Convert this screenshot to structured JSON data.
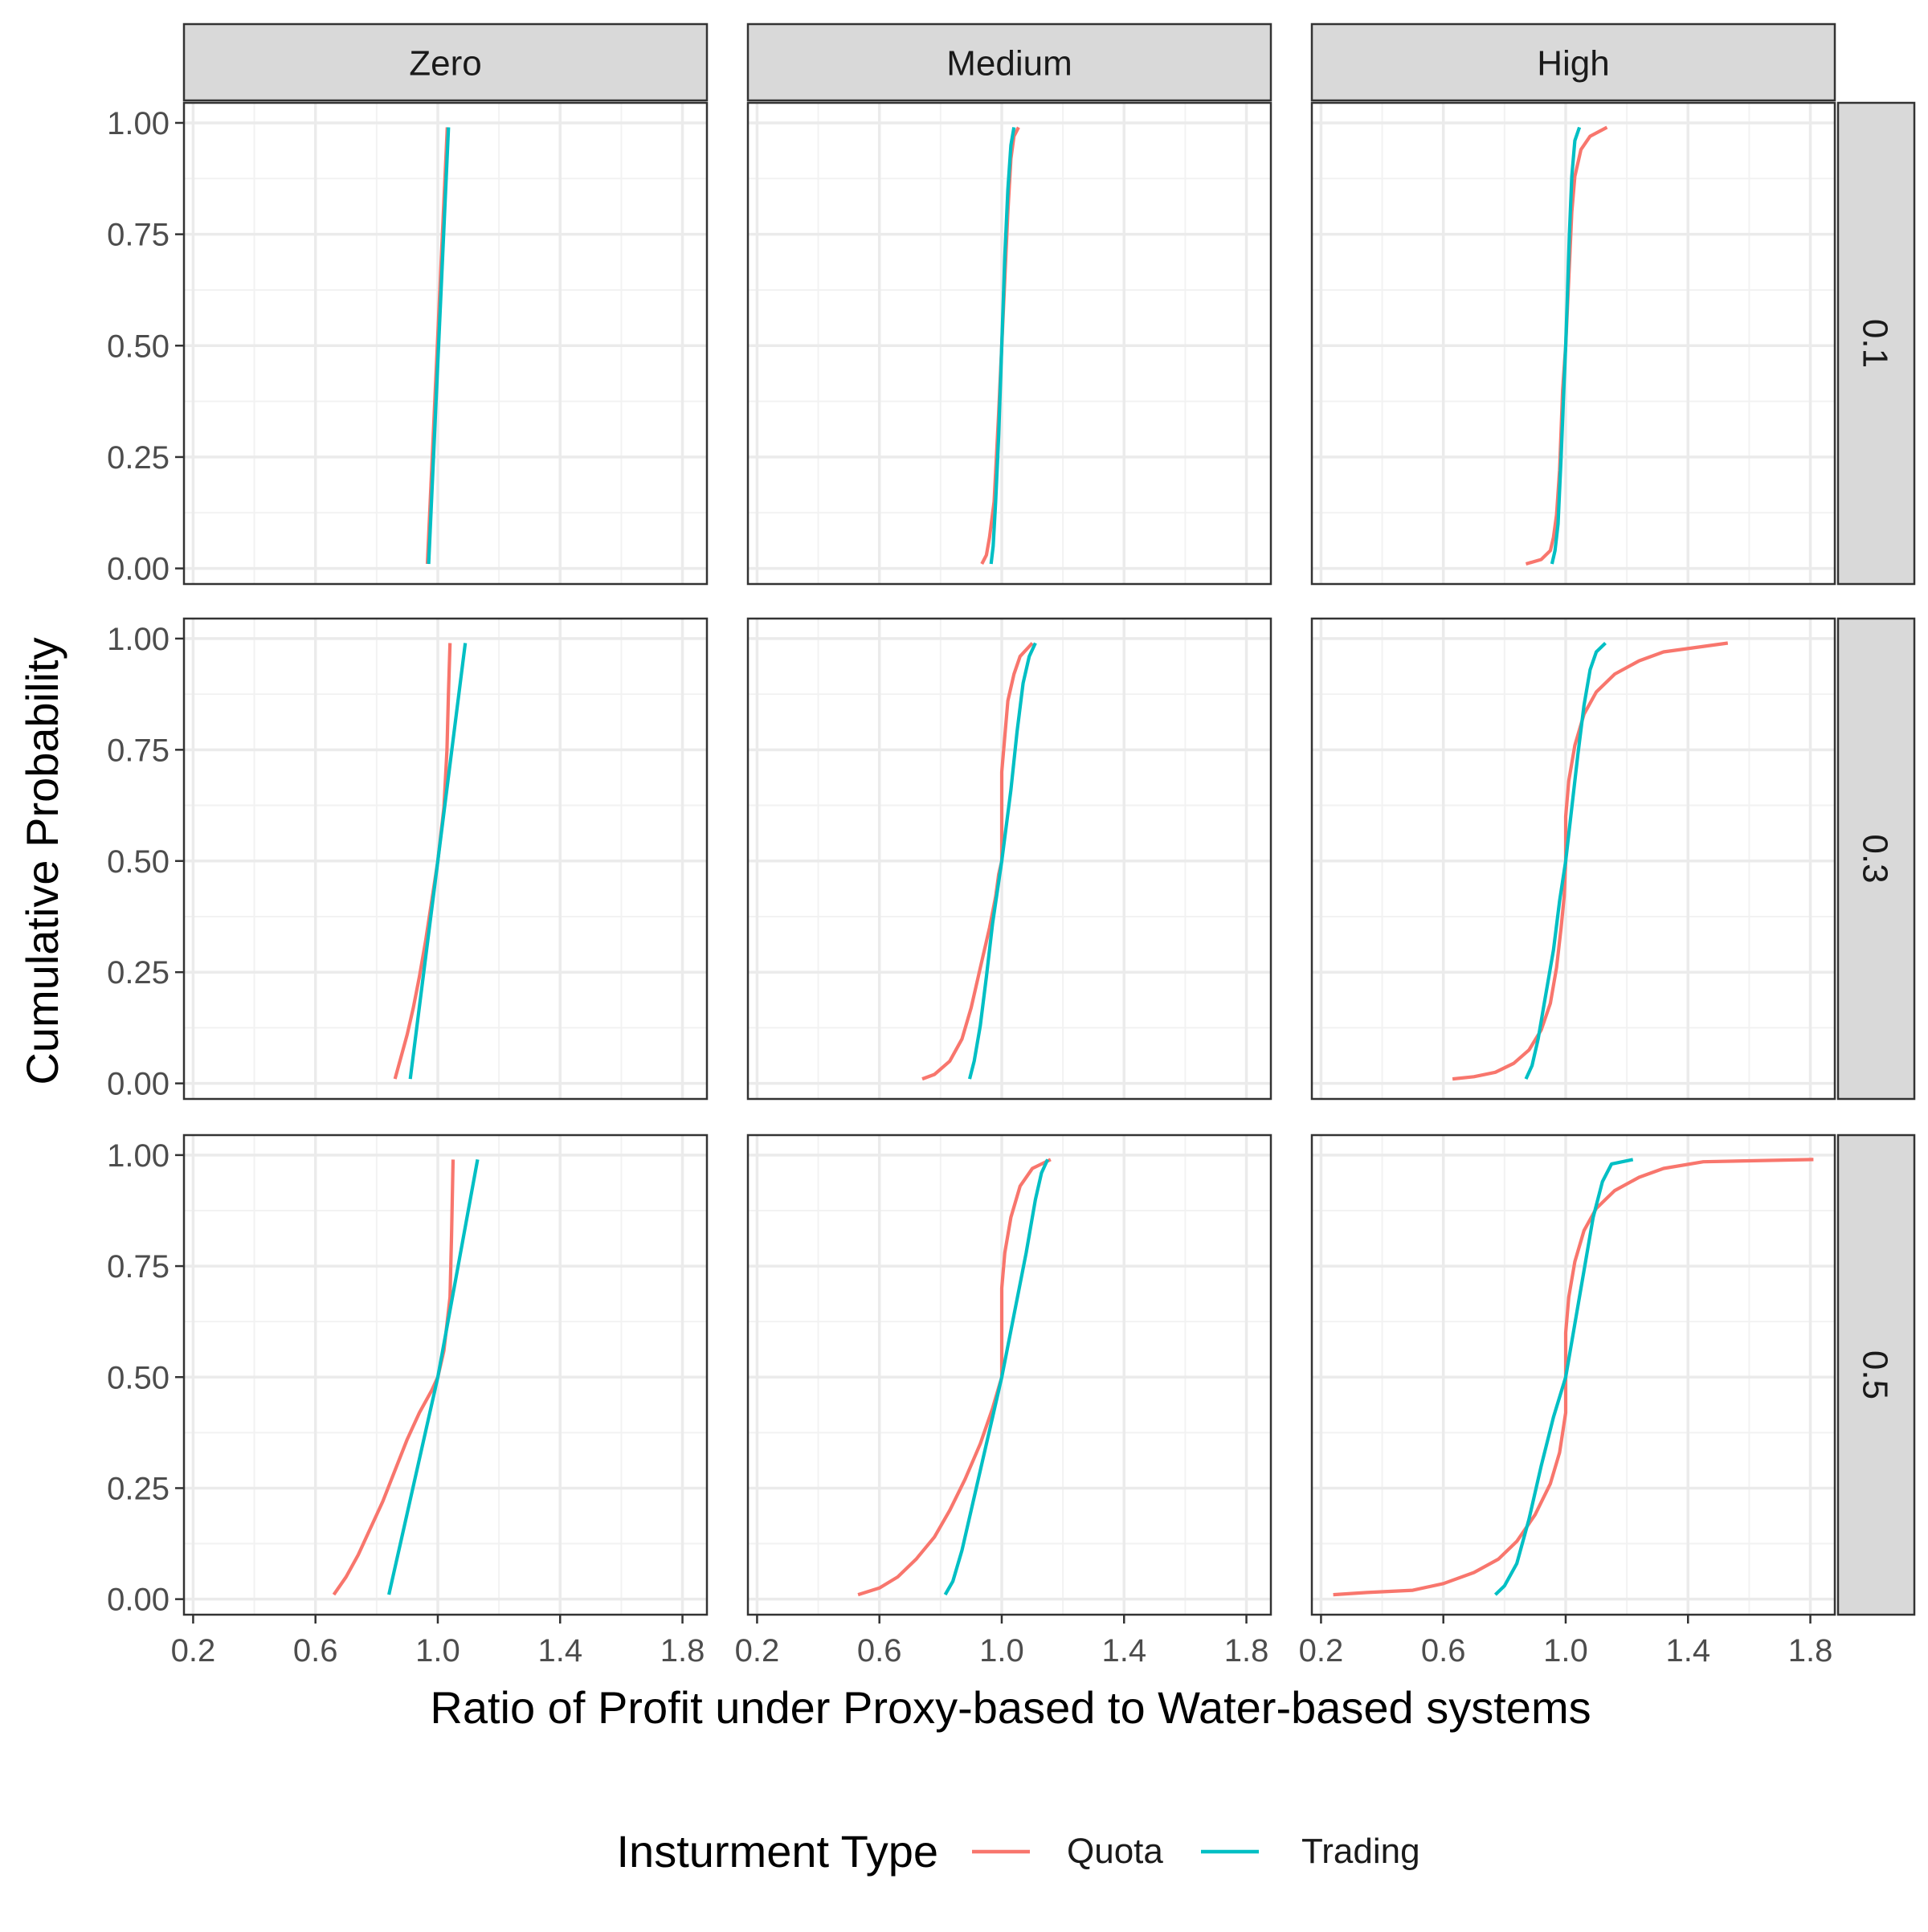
{
  "chart_data": {
    "type": "line",
    "subtype": "faceted-cdf",
    "xlabel": "Ratio of Profit under Proxy-based to Water-based systems",
    "ylabel": "Cumulative Probability",
    "xlim": [
      0.17,
      1.88
    ],
    "ylim": [
      -0.035,
      1.045
    ],
    "xticks": [
      0.2,
      0.6,
      1.0,
      1.4,
      1.8
    ],
    "xtick_labels": [
      "0.2",
      "0.6",
      "1.0",
      "1.4",
      "1.8"
    ],
    "yticks": [
      0,
      0.25,
      0.5,
      0.75,
      1.0
    ],
    "ytick_labels": [
      "0.00",
      "0.25",
      "0.50",
      "0.75",
      "1.00"
    ],
    "grid": true,
    "col_facets": [
      "Zero",
      "Medium",
      "High"
    ],
    "row_facets": [
      "0.1",
      "0.3",
      "0.5"
    ],
    "legend": {
      "title": "Insturment Type",
      "position": "bottom",
      "entries": [
        {
          "name": "Quota",
          "color": "#F8766D"
        },
        {
          "name": "Trading",
          "color": "#00BFC4"
        }
      ]
    },
    "panels": [
      {
        "row": "0.1",
        "col": "Zero",
        "series": [
          {
            "name": "Quota",
            "points": [
              [
                0.966,
                0.01
              ],
              [
                1.031,
                0.99
              ]
            ]
          },
          {
            "name": "Trading",
            "points": [
              [
                0.97,
                0.01
              ],
              [
                1.035,
                0.99
              ]
            ]
          }
        ]
      },
      {
        "row": "0.1",
        "col": "Medium",
        "series": [
          {
            "name": "Quota",
            "points": [
              [
                0.935,
                0.01
              ],
              [
                0.95,
                0.03
              ],
              [
                0.96,
                0.07
              ],
              [
                0.975,
                0.15
              ],
              [
                0.99,
                0.35
              ],
              [
                1.0,
                0.5
              ],
              [
                1.01,
                0.65
              ],
              [
                1.02,
                0.8
              ],
              [
                1.03,
                0.92
              ],
              [
                1.04,
                0.97
              ],
              [
                1.055,
                0.99
              ]
            ]
          },
          {
            "name": "Trading",
            "points": [
              [
                0.965,
                0.01
              ],
              [
                0.972,
                0.05
              ],
              [
                0.98,
                0.15
              ],
              [
                0.99,
                0.3
              ],
              [
                1.0,
                0.5
              ],
              [
                1.01,
                0.7
              ],
              [
                1.02,
                0.85
              ],
              [
                1.03,
                0.95
              ],
              [
                1.04,
                0.99
              ]
            ]
          }
        ]
      },
      {
        "row": "0.1",
        "col": "High",
        "series": [
          {
            "name": "Quota",
            "points": [
              [
                0.87,
                0.01
              ],
              [
                0.92,
                0.02
              ],
              [
                0.95,
                0.04
              ],
              [
                0.96,
                0.07
              ],
              [
                0.97,
                0.12
              ],
              [
                0.98,
                0.22
              ],
              [
                0.99,
                0.4
              ],
              [
                1.0,
                0.5
              ],
              [
                1.01,
                0.65
              ],
              [
                1.02,
                0.8
              ],
              [
                1.03,
                0.88
              ],
              [
                1.05,
                0.94
              ],
              [
                1.08,
                0.97
              ],
              [
                1.135,
                0.99
              ]
            ]
          },
          {
            "name": "Trading",
            "points": [
              [
                0.955,
                0.01
              ],
              [
                0.965,
                0.04
              ],
              [
                0.975,
                0.1
              ],
              [
                0.985,
                0.25
              ],
              [
                0.995,
                0.42
              ],
              [
                1.0,
                0.5
              ],
              [
                1.005,
                0.6
              ],
              [
                1.012,
                0.75
              ],
              [
                1.02,
                0.88
              ],
              [
                1.03,
                0.96
              ],
              [
                1.045,
                0.99
              ]
            ]
          }
        ]
      },
      {
        "row": "0.3",
        "col": "Zero",
        "series": [
          {
            "name": "Quota",
            "points": [
              [
                0.86,
                0.01
              ],
              [
                0.88,
                0.06
              ],
              [
                0.9,
                0.11
              ],
              [
                0.92,
                0.17
              ],
              [
                0.94,
                0.24
              ],
              [
                0.96,
                0.32
              ],
              [
                0.98,
                0.41
              ],
              [
                1.0,
                0.5
              ],
              [
                1.02,
                0.62
              ],
              [
                1.03,
                0.75
              ],
              [
                1.035,
                0.88
              ],
              [
                1.04,
                0.99
              ]
            ]
          },
          {
            "name": "Trading",
            "points": [
              [
                0.91,
                0.01
              ],
              [
                1.0,
                0.5
              ],
              [
                1.09,
                0.99
              ]
            ]
          }
        ]
      },
      {
        "row": "0.3",
        "col": "Medium",
        "series": [
          {
            "name": "Quota",
            "points": [
              [
                0.74,
                0.01
              ],
              [
                0.78,
                0.02
              ],
              [
                0.83,
                0.05
              ],
              [
                0.87,
                0.1
              ],
              [
                0.9,
                0.17
              ],
              [
                0.93,
                0.26
              ],
              [
                0.96,
                0.35
              ],
              [
                0.98,
                0.42
              ],
              [
                0.99,
                0.47
              ],
              [
                1.0,
                0.5
              ],
              [
                1.0,
                0.6
              ],
              [
                1.0,
                0.7
              ],
              [
                1.01,
                0.78
              ],
              [
                1.02,
                0.86
              ],
              [
                1.04,
                0.92
              ],
              [
                1.06,
                0.96
              ],
              [
                1.1,
                0.99
              ]
            ]
          },
          {
            "name": "Trading",
            "points": [
              [
                0.895,
                0.01
              ],
              [
                0.91,
                0.05
              ],
              [
                0.93,
                0.13
              ],
              [
                0.95,
                0.24
              ],
              [
                0.97,
                0.36
              ],
              [
                1.0,
                0.5
              ],
              [
                1.03,
                0.66
              ],
              [
                1.05,
                0.79
              ],
              [
                1.07,
                0.9
              ],
              [
                1.09,
                0.96
              ],
              [
                1.11,
                0.99
              ]
            ]
          }
        ]
      },
      {
        "row": "0.3",
        "col": "High",
        "series": [
          {
            "name": "Quota",
            "points": [
              [
                0.63,
                0.01
              ],
              [
                0.7,
                0.015
              ],
              [
                0.77,
                0.025
              ],
              [
                0.83,
                0.045
              ],
              [
                0.88,
                0.075
              ],
              [
                0.92,
                0.12
              ],
              [
                0.95,
                0.18
              ],
              [
                0.97,
                0.26
              ],
              [
                0.985,
                0.35
              ],
              [
                0.995,
                0.42
              ],
              [
                1.0,
                0.5
              ],
              [
                1.0,
                0.6
              ],
              [
                1.01,
                0.68
              ],
              [
                1.03,
                0.76
              ],
              [
                1.06,
                0.83
              ],
              [
                1.1,
                0.88
              ],
              [
                1.16,
                0.92
              ],
              [
                1.24,
                0.95
              ],
              [
                1.32,
                0.97
              ],
              [
                1.53,
                0.99
              ]
            ]
          },
          {
            "name": "Trading",
            "points": [
              [
                0.87,
                0.01
              ],
              [
                0.89,
                0.04
              ],
              [
                0.91,
                0.1
              ],
              [
                0.93,
                0.18
              ],
              [
                0.96,
                0.3
              ],
              [
                0.98,
                0.41
              ],
              [
                1.0,
                0.5
              ],
              [
                1.02,
                0.62
              ],
              [
                1.04,
                0.74
              ],
              [
                1.06,
                0.85
              ],
              [
                1.08,
                0.93
              ],
              [
                1.1,
                0.97
              ],
              [
                1.13,
                0.99
              ]
            ]
          }
        ]
      },
      {
        "row": "0.5",
        "col": "Zero",
        "series": [
          {
            "name": "Quota",
            "points": [
              [
                0.66,
                0.01
              ],
              [
                0.7,
                0.05
              ],
              [
                0.74,
                0.1
              ],
              [
                0.78,
                0.16
              ],
              [
                0.82,
                0.22
              ],
              [
                0.86,
                0.29
              ],
              [
                0.9,
                0.36
              ],
              [
                0.94,
                0.42
              ],
              [
                0.98,
                0.47
              ],
              [
                1.0,
                0.5
              ],
              [
                1.02,
                0.56
              ],
              [
                1.04,
                0.68
              ],
              [
                1.045,
                0.82
              ],
              [
                1.05,
                0.99
              ]
            ]
          },
          {
            "name": "Trading",
            "points": [
              [
                0.84,
                0.01
              ],
              [
                1.0,
                0.5
              ],
              [
                1.13,
                0.99
              ]
            ]
          }
        ]
      },
      {
        "row": "0.5",
        "col": "Medium",
        "series": [
          {
            "name": "Quota",
            "points": [
              [
                0.53,
                0.01
              ],
              [
                0.6,
                0.025
              ],
              [
                0.66,
                0.05
              ],
              [
                0.72,
                0.09
              ],
              [
                0.78,
                0.14
              ],
              [
                0.83,
                0.2
              ],
              [
                0.88,
                0.27
              ],
              [
                0.93,
                0.35
              ],
              [
                0.97,
                0.43
              ],
              [
                1.0,
                0.5
              ],
              [
                1.0,
                0.6
              ],
              [
                1.0,
                0.7
              ],
              [
                1.01,
                0.78
              ],
              [
                1.03,
                0.86
              ],
              [
                1.06,
                0.93
              ],
              [
                1.1,
                0.97
              ],
              [
                1.16,
                0.99
              ]
            ]
          },
          {
            "name": "Trading",
            "points": [
              [
                0.815,
                0.01
              ],
              [
                0.84,
                0.04
              ],
              [
                0.87,
                0.11
              ],
              [
                0.9,
                0.2
              ],
              [
                0.94,
                0.32
              ],
              [
                0.97,
                0.41
              ],
              [
                1.0,
                0.5
              ],
              [
                1.04,
                0.64
              ],
              [
                1.08,
                0.78
              ],
              [
                1.11,
                0.9
              ],
              [
                1.13,
                0.96
              ],
              [
                1.15,
                0.99
              ]
            ]
          }
        ]
      },
      {
        "row": "0.5",
        "col": "High",
        "series": [
          {
            "name": "Quota",
            "points": [
              [
                0.24,
                0.01
              ],
              [
                0.35,
                0.015
              ],
              [
                0.5,
                0.02
              ],
              [
                0.6,
                0.035
              ],
              [
                0.7,
                0.06
              ],
              [
                0.78,
                0.09
              ],
              [
                0.84,
                0.13
              ],
              [
                0.9,
                0.19
              ],
              [
                0.95,
                0.26
              ],
              [
                0.98,
                0.33
              ],
              [
                1.0,
                0.42
              ],
              [
                1.0,
                0.5
              ],
              [
                1.0,
                0.6
              ],
              [
                1.01,
                0.68
              ],
              [
                1.03,
                0.76
              ],
              [
                1.06,
                0.83
              ],
              [
                1.1,
                0.88
              ],
              [
                1.16,
                0.92
              ],
              [
                1.24,
                0.95
              ],
              [
                1.32,
                0.97
              ],
              [
                1.45,
                0.985
              ],
              [
                1.81,
                0.99
              ]
            ]
          },
          {
            "name": "Trading",
            "points": [
              [
                0.77,
                0.01
              ],
              [
                0.8,
                0.03
              ],
              [
                0.84,
                0.08
              ],
              [
                0.88,
                0.18
              ],
              [
                0.92,
                0.3
              ],
              [
                0.96,
                0.41
              ],
              [
                1.0,
                0.5
              ],
              [
                1.03,
                0.62
              ],
              [
                1.06,
                0.74
              ],
              [
                1.09,
                0.86
              ],
              [
                1.12,
                0.94
              ],
              [
                1.15,
                0.98
              ],
              [
                1.22,
                0.99
              ]
            ]
          }
        ]
      }
    ]
  }
}
